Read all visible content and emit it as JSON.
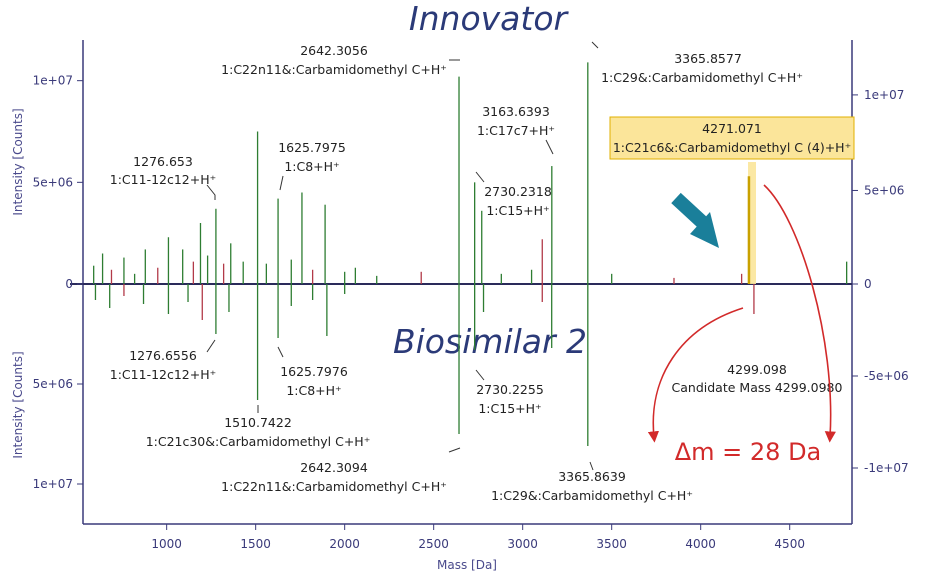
{
  "chart_data": {
    "type": "mirror-spectrum",
    "top_title": "Innovator",
    "bottom_title": "Biosimilar 2",
    "xlabel": "Mass [Da]",
    "ylabel_top": "Intensity [Counts]",
    "ylabel_bottom": "Intensity [Counts]",
    "xlim": [
      530,
      4850
    ],
    "ylim_top": [
      0,
      12000000
    ],
    "ylim_bottom": [
      0,
      12000000
    ],
    "x_ticks": [
      "1000",
      "1500",
      "2000",
      "2500",
      "3000",
      "3500",
      "4000",
      "4500"
    ],
    "x_tick_values": [
      1000,
      1500,
      2000,
      2500,
      3000,
      3500,
      4000,
      4500
    ],
    "left_ticks": [
      "1e+07",
      "5e+06",
      "0",
      "5e+06",
      "1e+07"
    ],
    "left_tick_values": [
      10000000,
      5000000,
      0,
      -5000000,
      -10000000
    ],
    "right_ticks": [
      "1e+07",
      "5e+06",
      "0",
      "-5e+06",
      "-1e+07"
    ],
    "right_tick_values": [
      9300000,
      4600000,
      0,
      -4600000,
      -9200000
    ],
    "top_peaks": [
      {
        "mass": 590,
        "intensity": 900000,
        "color": "#2e7d32"
      },
      {
        "mass": 640,
        "intensity": 1500000,
        "color": "#2e7d32"
      },
      {
        "mass": 690,
        "intensity": 700000,
        "color": "#b23a48"
      },
      {
        "mass": 760,
        "intensity": 1300000,
        "color": "#2e7d32"
      },
      {
        "mass": 820,
        "intensity": 500000,
        "color": "#2e7d32"
      },
      {
        "mass": 880,
        "intensity": 1700000,
        "color": "#2e7d32"
      },
      {
        "mass": 950,
        "intensity": 800000,
        "color": "#b23a48"
      },
      {
        "mass": 1010,
        "intensity": 2300000,
        "color": "#2e7d32"
      },
      {
        "mass": 1090,
        "intensity": 1700000,
        "color": "#2e7d32"
      },
      {
        "mass": 1150,
        "intensity": 1100000,
        "color": "#b23a48"
      },
      {
        "mass": 1190,
        "intensity": 3000000,
        "color": "#2e7d32"
      },
      {
        "mass": 1230,
        "intensity": 1400000,
        "color": "#2e7d32"
      },
      {
        "mass": 1276.653,
        "intensity": 3700000,
        "color": "#2e7d32"
      },
      {
        "mass": 1320,
        "intensity": 1000000,
        "color": "#b23a48"
      },
      {
        "mass": 1360,
        "intensity": 2000000,
        "color": "#2e7d32"
      },
      {
        "mass": 1430,
        "intensity": 1100000,
        "color": "#2e7d32"
      },
      {
        "mass": 1510.74,
        "intensity": 7500000,
        "color": "#2e7d32"
      },
      {
        "mass": 1560,
        "intensity": 1000000,
        "color": "#2e7d32"
      },
      {
        "mass": 1625.7975,
        "intensity": 4200000,
        "color": "#2e7d32"
      },
      {
        "mass": 1700,
        "intensity": 1200000,
        "color": "#2e7d32"
      },
      {
        "mass": 1760,
        "intensity": 4500000,
        "color": "#2e7d32"
      },
      {
        "mass": 1820,
        "intensity": 700000,
        "color": "#b23a48"
      },
      {
        "mass": 1890,
        "intensity": 3900000,
        "color": "#2e7d32"
      },
      {
        "mass": 2000,
        "intensity": 600000,
        "color": "#2e7d32"
      },
      {
        "mass": 2060,
        "intensity": 800000,
        "color": "#2e7d32"
      },
      {
        "mass": 2180,
        "intensity": 400000,
        "color": "#2e7d32"
      },
      {
        "mass": 2430,
        "intensity": 600000,
        "color": "#b23a48"
      },
      {
        "mass": 2642.3056,
        "intensity": 10200000,
        "color": "#2e7d32"
      },
      {
        "mass": 2730.2318,
        "intensity": 5000000,
        "color": "#2e7d32"
      },
      {
        "mass": 2770,
        "intensity": 3600000,
        "color": "#2e7d32"
      },
      {
        "mass": 2880,
        "intensity": 500000,
        "color": "#2e7d32"
      },
      {
        "mass": 3050,
        "intensity": 700000,
        "color": "#2e7d32"
      },
      {
        "mass": 3110,
        "intensity": 2200000,
        "color": "#b23a48"
      },
      {
        "mass": 3163.6393,
        "intensity": 5800000,
        "color": "#2e7d32"
      },
      {
        "mass": 3365.8577,
        "intensity": 10900000,
        "color": "#2e7d32"
      },
      {
        "mass": 3500,
        "intensity": 500000,
        "color": "#2e7d32"
      },
      {
        "mass": 3850,
        "intensity": 300000,
        "color": "#b23a48"
      },
      {
        "mass": 4230,
        "intensity": 500000,
        "color": "#b23a48"
      },
      {
        "mass": 4271.071,
        "intensity": 5300000,
        "color": "#c9a100"
      },
      {
        "mass": 4820,
        "intensity": 1100000,
        "color": "#2e7d32"
      }
    ],
    "bottom_peaks": [
      {
        "mass": 600,
        "intensity": 800000,
        "color": "#2e7d32"
      },
      {
        "mass": 680,
        "intensity": 1200000,
        "color": "#2e7d32"
      },
      {
        "mass": 760,
        "intensity": 600000,
        "color": "#b23a48"
      },
      {
        "mass": 870,
        "intensity": 1000000,
        "color": "#2e7d32"
      },
      {
        "mass": 1010,
        "intensity": 1500000,
        "color": "#2e7d32"
      },
      {
        "mass": 1120,
        "intensity": 900000,
        "color": "#2e7d32"
      },
      {
        "mass": 1200,
        "intensity": 1800000,
        "color": "#b23a48"
      },
      {
        "mass": 1276.6556,
        "intensity": 2500000,
        "color": "#2e7d32"
      },
      {
        "mass": 1350,
        "intensity": 1400000,
        "color": "#2e7d32"
      },
      {
        "mass": 1510.7422,
        "intensity": 5800000,
        "color": "#2e7d32"
      },
      {
        "mass": 1625.7976,
        "intensity": 2700000,
        "color": "#2e7d32"
      },
      {
        "mass": 1700,
        "intensity": 1100000,
        "color": "#2e7d32"
      },
      {
        "mass": 1820,
        "intensity": 800000,
        "color": "#2e7d32"
      },
      {
        "mass": 1900,
        "intensity": 2600000,
        "color": "#2e7d32"
      },
      {
        "mass": 2000,
        "intensity": 500000,
        "color": "#2e7d32"
      },
      {
        "mass": 2642.3094,
        "intensity": 7500000,
        "color": "#2e7d32"
      },
      {
        "mass": 2730.2255,
        "intensity": 3300000,
        "color": "#2e7d32"
      },
      {
        "mass": 2780,
        "intensity": 1400000,
        "color": "#2e7d32"
      },
      {
        "mass": 3110,
        "intensity": 900000,
        "color": "#b23a48"
      },
      {
        "mass": 3163,
        "intensity": 3200000,
        "color": "#2e7d32"
      },
      {
        "mass": 3365.8639,
        "intensity": 8100000,
        "color": "#2e7d32"
      },
      {
        "mass": 4299.098,
        "intensity": 1500000,
        "color": "#b23a48"
      }
    ],
    "top_labels": [
      {
        "mass_text": "1276.653",
        "formula": "1:C11-12c12+H⁺"
      },
      {
        "mass_text": "1625.7975",
        "formula": "1:C8+H⁺"
      },
      {
        "mass_text": "2642.3056",
        "formula": "1:C22n11&:Carbamidomethyl C+H⁺"
      },
      {
        "mass_text": "3163.6393",
        "formula": "1:C17c7+H⁺"
      },
      {
        "mass_text": "2730.2318",
        "formula": "1:C15+H⁺"
      },
      {
        "mass_text": "3365.8577",
        "formula": "1:C29&:Carbamidomethyl C+H⁺"
      }
    ],
    "highlight_label": {
      "mass_text": "4271.071",
      "formula": "1:C21c6&:Carbamidomethyl C (4)+H⁺"
    },
    "bottom_labels": [
      {
        "mass_text": "1276.6556",
        "formula": "1:C11-12c12+H⁺"
      },
      {
        "mass_text": "1625.7976",
        "formula": "1:C8+H⁺"
      },
      {
        "mass_text": "1510.7422",
        "formula": "1:C21c30&:Carbamidomethyl C+H⁺"
      },
      {
        "mass_text": "2730.2255",
        "formula": "1:C15+H⁺"
      },
      {
        "mass_text": "2642.3094",
        "formula": "1:C22n11&:Carbamidomethyl C+H⁺"
      },
      {
        "mass_text": "3365.8639",
        "formula": "1:C29&:Carbamidomethyl C+H⁺"
      }
    ],
    "candidate": {
      "mass_text": "4299.098",
      "text": "Candidate Mass 4299.0980"
    },
    "delta_text": "Δm = 28 Da"
  },
  "colors": {
    "axis": "#3a3a7a",
    "highlight_fill": "#fbe59a",
    "highlight_border": "#e0b000",
    "arrow_teal": "#1a7f9a",
    "delta_red": "#d22a2a"
  }
}
